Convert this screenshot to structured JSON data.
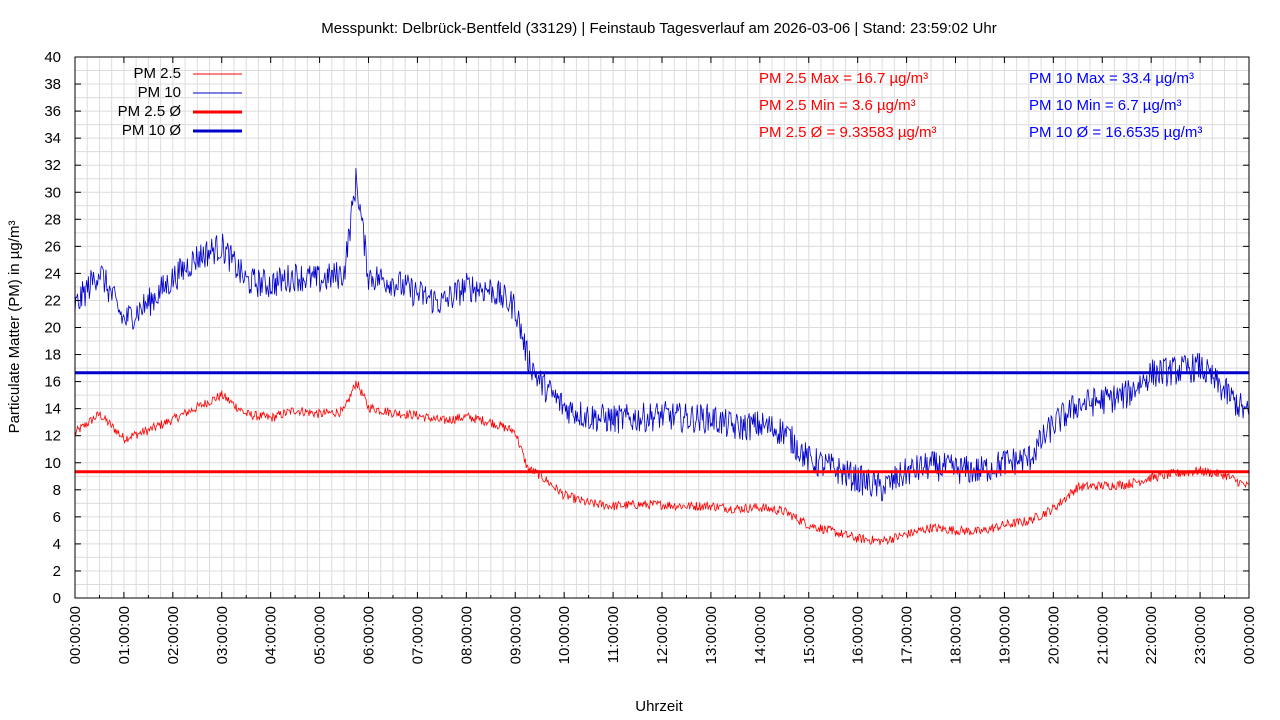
{
  "chart_data": {
    "type": "line",
    "title": "Messpunkt: Delbrück-Bentfeld (33129) | Feinstaub Tagesverlauf am 2026-03-06 | Stand: 23:59:02 Uhr",
    "xlabel": "Uhrzeit",
    "ylabel": "Particulate Matter (PM) in µg/m³",
    "ylim": [
      0,
      40
    ],
    "yticks": [
      0,
      2,
      4,
      6,
      8,
      10,
      12,
      14,
      16,
      18,
      20,
      22,
      24,
      26,
      28,
      30,
      32,
      34,
      36,
      38,
      40
    ],
    "xlim": [
      "00:00:00",
      "24:00:00"
    ],
    "xticks": [
      "00:00:00",
      "01:00:00",
      "02:00:00",
      "03:00:00",
      "04:00:00",
      "05:00:00",
      "06:00:00",
      "07:00:00",
      "08:00:00",
      "09:00:00",
      "10:00:00",
      "11:00:00",
      "12:00:00",
      "13:00:00",
      "14:00:00",
      "15:00:00",
      "16:00:00",
      "17:00:00",
      "18:00:00",
      "19:00:00",
      "20:00:00",
      "21:00:00",
      "22:00:00",
      "23:00:00",
      "00:00:00"
    ],
    "grid": true,
    "legend_position": "top-left",
    "x": [
      "00:00",
      "00:30",
      "01:00",
      "01:30",
      "02:00",
      "02:30",
      "03:00",
      "03:30",
      "04:00",
      "04:30",
      "05:00",
      "05:30",
      "05:45",
      "06:00",
      "06:30",
      "07:00",
      "07:30",
      "08:00",
      "08:30",
      "09:00",
      "09:15",
      "09:30",
      "10:00",
      "10:30",
      "11:00",
      "11:30",
      "12:00",
      "12:30",
      "13:00",
      "13:30",
      "14:00",
      "14:30",
      "15:00",
      "15:30",
      "16:00",
      "16:30",
      "17:00",
      "17:30",
      "18:00",
      "18:30",
      "19:00",
      "19:30",
      "20:00",
      "20:30",
      "21:00",
      "21:30",
      "22:00",
      "22:30",
      "23:00",
      "23:30",
      "24:00"
    ],
    "series": [
      {
        "name": "PM 2.5",
        "color": "#ff0000",
        "style": "thin",
        "values": [
          12.2,
          13.6,
          11.8,
          12.4,
          13.2,
          14.1,
          15.0,
          13.6,
          13.3,
          13.9,
          13.6,
          13.8,
          16.0,
          14.1,
          13.7,
          13.5,
          13.1,
          13.4,
          13.0,
          12.3,
          9.6,
          9.1,
          7.6,
          7.0,
          6.8,
          6.9,
          6.9,
          6.8,
          6.8,
          6.6,
          6.7,
          6.4,
          5.4,
          4.9,
          4.4,
          4.2,
          4.7,
          5.2,
          5.0,
          4.9,
          5.4,
          5.7,
          6.6,
          8.2,
          8.3,
          8.4,
          8.9,
          9.2,
          9.4,
          9.1,
          8.2
        ]
      },
      {
        "name": "PM 10",
        "color": "#0000cc",
        "style": "thin",
        "values": [
          21.5,
          24.2,
          20.5,
          21.8,
          23.6,
          25.2,
          26.0,
          23.4,
          23.2,
          23.8,
          23.5,
          24.0,
          31.0,
          23.8,
          23.4,
          22.5,
          21.8,
          23.0,
          22.8,
          21.5,
          17.8,
          16.0,
          14.1,
          13.4,
          13.2,
          13.3,
          13.5,
          13.3,
          13.3,
          12.6,
          12.8,
          12.3,
          10.2,
          9.6,
          8.8,
          8.1,
          9.3,
          9.8,
          9.5,
          9.4,
          10.0,
          10.3,
          12.8,
          14.3,
          14.6,
          15.0,
          16.6,
          16.8,
          17.1,
          15.3,
          13.5
        ]
      },
      {
        "name": "PM 2.5 Ø",
        "color": "#ff0000",
        "style": "thick",
        "constant": 9.33583
      },
      {
        "name": "PM 10 Ø",
        "color": "#0000cc",
        "style": "thick",
        "constant": 16.6535
      }
    ],
    "annotations": [
      {
        "text": "PM 2.5 Max = 16.7 µg/m³",
        "color": "#ff0000"
      },
      {
        "text": "PM 2.5 Min = 3.6 µg/m³",
        "color": "#ff0000"
      },
      {
        "text": "PM 2.5 Ø = 9.33583 µg/m³",
        "color": "#ff0000"
      },
      {
        "text": "PM 10 Max = 33.4 µg/m³",
        "color": "#0000ff"
      },
      {
        "text": "PM 10 Min = 6.7 µg/m³",
        "color": "#0000ff"
      },
      {
        "text": "PM 10 Ø = 16.6535 µg/m³",
        "color": "#0000ff"
      }
    ]
  }
}
